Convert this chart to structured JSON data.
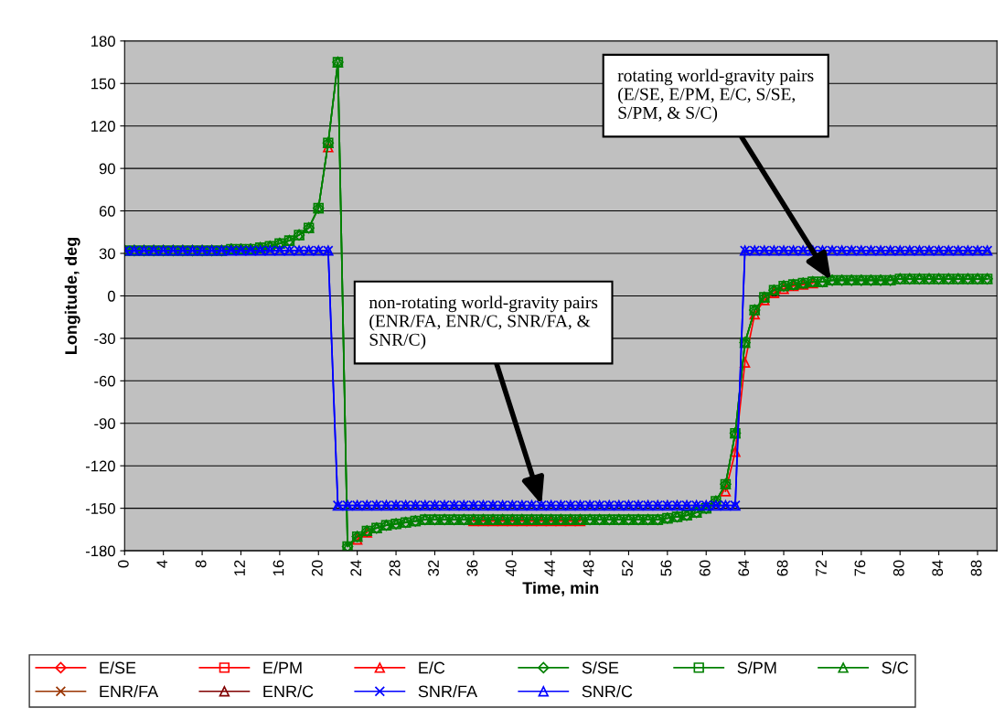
{
  "chart_data": {
    "type": "line",
    "xlabel": "Time, min",
    "ylabel": "Longitude, deg",
    "x": [
      0,
      1,
      2,
      3,
      4,
      5,
      6,
      7,
      8,
      9,
      10,
      11,
      12,
      13,
      14,
      15,
      16,
      17,
      18,
      19,
      20,
      21,
      22,
      23,
      24,
      25,
      26,
      27,
      28,
      29,
      30,
      31,
      32,
      33,
      34,
      35,
      36,
      37,
      38,
      39,
      40,
      41,
      42,
      43,
      44,
      45,
      46,
      47,
      48,
      49,
      50,
      51,
      52,
      53,
      54,
      55,
      56,
      57,
      58,
      59,
      60,
      61,
      62,
      63,
      64,
      65,
      66,
      67,
      68,
      69,
      70,
      71,
      72,
      73,
      74,
      75,
      76,
      77,
      78,
      79,
      80,
      81,
      82,
      83,
      84,
      85,
      86,
      87,
      88,
      89
    ],
    "xlim": [
      0,
      90
    ],
    "xticks": [
      0,
      4,
      8,
      12,
      16,
      20,
      24,
      28,
      32,
      36,
      40,
      44,
      48,
      52,
      56,
      60,
      64,
      68,
      72,
      76,
      80,
      84,
      88
    ],
    "ylim": [
      -180,
      180
    ],
    "yticks": [
      -180,
      -150,
      -120,
      -90,
      -60,
      -30,
      0,
      30,
      60,
      90,
      120,
      150,
      180
    ],
    "grid": "y",
    "legend": "bottom",
    "line_style": "solid",
    "series": [
      {
        "name": "E/SE",
        "color": "#ff0000",
        "marker": "diamond",
        "values": [
          null,
          null,
          null,
          null,
          null,
          null,
          null,
          null,
          null,
          null,
          null,
          null,
          null,
          null,
          null,
          null,
          null,
          null,
          null,
          null,
          null,
          null,
          null,
          null,
          null,
          null,
          null,
          null,
          null,
          null,
          null,
          null,
          null,
          null,
          null,
          null,
          null,
          null,
          null,
          null,
          null,
          null,
          null,
          null,
          null,
          null,
          null,
          null,
          null,
          null,
          null,
          null,
          null,
          null,
          null,
          null,
          null,
          null,
          null,
          null,
          null,
          null,
          null,
          null,
          null,
          null,
          null,
          null,
          null,
          null,
          null,
          null,
          null,
          null,
          null,
          null,
          null,
          null,
          null,
          null,
          null,
          null,
          null,
          null,
          null,
          null,
          null,
          null,
          null,
          null
        ]
      },
      {
        "name": "E/PM",
        "color": "#ff0000",
        "marker": "square",
        "values": [
          null,
          null,
          null,
          null,
          null,
          null,
          null,
          null,
          null,
          null,
          null,
          null,
          null,
          null,
          null,
          null,
          null,
          null,
          null,
          null,
          null,
          null,
          null,
          null,
          null,
          null,
          null,
          null,
          null,
          null,
          null,
          null,
          null,
          null,
          null,
          null,
          null,
          null,
          null,
          null,
          null,
          null,
          null,
          null,
          null,
          null,
          null,
          null,
          null,
          null,
          null,
          null,
          null,
          null,
          null,
          null,
          null,
          null,
          null,
          null,
          null,
          null,
          null,
          null,
          null,
          null,
          null,
          null,
          null,
          null,
          null,
          null,
          null,
          null,
          null,
          null,
          null,
          null,
          null,
          null,
          null,
          null,
          null,
          null,
          null,
          null,
          null,
          null,
          null,
          null
        ]
      },
      {
        "name": "E/C",
        "color": "#ff0000",
        "marker": "triangle",
        "values": [
          null,
          null,
          null,
          null,
          null,
          null,
          null,
          null,
          null,
          null,
          null,
          null,
          null,
          null,
          null,
          null,
          null,
          null,
          null,
          null,
          null,
          105,
          null,
          null,
          -172,
          -167,
          null,
          null,
          null,
          null,
          null,
          null,
          null,
          null,
          null,
          null,
          -159,
          -159,
          -159,
          -159,
          -159,
          -159,
          -159,
          -159,
          -159,
          -159,
          -159,
          -159,
          null,
          null,
          null,
          null,
          null,
          null,
          null,
          null,
          null,
          null,
          null,
          null,
          null,
          null,
          -138,
          -110,
          -47,
          -13,
          -3,
          2,
          5,
          7,
          8,
          9,
          null,
          null,
          null,
          null,
          null,
          null,
          null,
          null,
          null,
          null,
          null,
          null,
          null,
          null,
          null,
          null,
          null,
          null
        ]
      },
      {
        "name": "S/SE",
        "color": "#008000",
        "marker": "diamond",
        "values": [
          32,
          32,
          32,
          32,
          32,
          32,
          32,
          32,
          32,
          32,
          32,
          33,
          33,
          33,
          34,
          35,
          37,
          39,
          43,
          48,
          62,
          108,
          165,
          -177,
          -170,
          -166,
          -164,
          -162,
          -161,
          -160,
          -159,
          -158,
          -158,
          -158,
          -158,
          -158,
          -158,
          -158,
          -158,
          -158,
          -158,
          -158,
          -158,
          -158,
          -158,
          -158,
          -158,
          -158,
          -158,
          -158,
          -158,
          -158,
          -158,
          -158,
          -158,
          -158,
          -157,
          -156,
          -155,
          -153,
          -150,
          -145,
          -133,
          -97,
          -33,
          -10,
          -1,
          4,
          7,
          8,
          9,
          10,
          10,
          11,
          11,
          11,
          11,
          11,
          11,
          11,
          12,
          12,
          12,
          12,
          12,
          12,
          12,
          12,
          12,
          12
        ]
      },
      {
        "name": "S/PM",
        "color": "#008000",
        "marker": "square",
        "values": [
          32,
          32,
          32,
          32,
          32,
          32,
          32,
          32,
          32,
          32,
          32,
          33,
          33,
          33,
          34,
          35,
          37,
          39,
          43,
          48,
          62,
          108,
          165,
          -177,
          -170,
          -166,
          -164,
          -162,
          -161,
          -160,
          -159,
          -158,
          -158,
          -158,
          -158,
          -158,
          -158,
          -158,
          -158,
          -158,
          -158,
          -158,
          -158,
          -158,
          -158,
          -158,
          -158,
          -158,
          -158,
          -158,
          -158,
          -158,
          -158,
          -158,
          -158,
          -158,
          -157,
          -156,
          -155,
          -153,
          -150,
          -145,
          -133,
          -97,
          -33,
          -10,
          -1,
          4,
          7,
          8,
          9,
          10,
          10,
          11,
          11,
          11,
          11,
          11,
          11,
          11,
          12,
          12,
          12,
          12,
          12,
          12,
          12,
          12,
          12,
          12
        ]
      },
      {
        "name": "S/C",
        "color": "#008000",
        "marker": "triangle",
        "values": [
          32,
          32,
          32,
          32,
          32,
          32,
          32,
          32,
          32,
          32,
          32,
          33,
          33,
          33,
          34,
          35,
          37,
          39,
          43,
          48,
          62,
          108,
          165,
          -177,
          -170,
          -166,
          -164,
          -162,
          -161,
          -160,
          -159,
          -158,
          -158,
          -158,
          -158,
          -158,
          -158,
          -158,
          -158,
          -158,
          -158,
          -158,
          -158,
          -158,
          -158,
          -158,
          -158,
          -158,
          -158,
          -158,
          -158,
          -158,
          -158,
          -158,
          -158,
          -158,
          -157,
          -156,
          -155,
          -153,
          -150,
          -145,
          -133,
          -97,
          -33,
          -10,
          -1,
          4,
          7,
          8,
          9,
          10,
          10,
          11,
          11,
          11,
          11,
          11,
          11,
          11,
          12,
          12,
          12,
          12,
          12,
          12,
          12,
          12,
          12,
          12
        ]
      },
      {
        "name": "ENR/FA",
        "color": "#993300",
        "marker": "cross",
        "values": [
          null,
          null,
          null,
          null,
          null,
          null,
          null,
          null,
          null,
          null,
          null,
          null,
          null,
          null,
          null,
          null,
          null,
          null,
          null,
          null,
          null,
          null,
          null,
          null,
          null,
          null,
          null,
          null,
          null,
          null,
          null,
          null,
          null,
          null,
          null,
          null,
          null,
          null,
          null,
          null,
          null,
          null,
          null,
          null,
          null,
          null,
          null,
          null,
          null,
          null,
          null,
          null,
          null,
          null,
          null,
          null,
          null,
          null,
          null,
          null,
          null,
          null,
          null,
          null,
          null,
          null,
          null,
          null,
          null,
          null,
          null,
          null,
          null,
          null,
          null,
          null,
          null,
          null,
          null,
          null,
          null,
          null,
          null,
          null,
          null,
          null,
          null,
          null,
          null,
          null
        ]
      },
      {
        "name": "ENR/C",
        "color": "#800000",
        "marker": "triangle",
        "values": [
          null,
          null,
          null,
          null,
          null,
          null,
          null,
          null,
          null,
          null,
          null,
          null,
          null,
          null,
          null,
          null,
          null,
          null,
          null,
          null,
          null,
          null,
          null,
          null,
          null,
          null,
          null,
          null,
          null,
          null,
          null,
          null,
          null,
          null,
          null,
          null,
          null,
          null,
          null,
          null,
          null,
          null,
          null,
          null,
          null,
          null,
          null,
          null,
          null,
          null,
          null,
          null,
          null,
          null,
          null,
          null,
          null,
          null,
          null,
          null,
          null,
          null,
          null,
          null,
          null,
          null,
          null,
          null,
          null,
          null,
          null,
          null,
          null,
          null,
          null,
          null,
          null,
          null,
          null,
          null,
          null,
          null,
          null,
          null,
          null,
          null,
          null,
          null,
          null,
          null
        ]
      },
      {
        "name": "SNR/FA",
        "color": "#0000ff",
        "marker": "cross",
        "values": [
          32,
          32,
          32,
          32,
          32,
          32,
          32,
          32,
          32,
          32,
          32,
          32,
          32,
          32,
          32,
          32,
          32,
          32,
          32,
          32,
          32,
          32,
          -148,
          -148,
          -148,
          -148,
          -148,
          -148,
          -148,
          -148,
          -148,
          -148,
          -148,
          -148,
          -148,
          -148,
          -148,
          -148,
          -148,
          -148,
          -148,
          -148,
          -148,
          -148,
          -148,
          -148,
          -148,
          -148,
          -148,
          -148,
          -148,
          -148,
          -148,
          -148,
          -148,
          -148,
          -148,
          -148,
          -148,
          -148,
          -148,
          -148,
          -148,
          -148,
          32,
          32,
          32,
          32,
          32,
          32,
          32,
          32,
          32,
          32,
          32,
          32,
          32,
          32,
          32,
          32,
          32,
          32,
          32,
          32,
          32,
          32,
          32,
          32,
          32,
          32
        ]
      },
      {
        "name": "SNR/C",
        "color": "#0000ff",
        "marker": "triangle",
        "values": [
          32,
          32,
          32,
          32,
          32,
          32,
          32,
          32,
          32,
          32,
          32,
          32,
          32,
          32,
          32,
          32,
          32,
          32,
          32,
          32,
          32,
          32,
          -148,
          -148,
          -148,
          -148,
          -148,
          -148,
          -148,
          -148,
          -148,
          -148,
          -148,
          -148,
          -148,
          -148,
          -148,
          -148,
          -148,
          -148,
          -148,
          -148,
          -148,
          -148,
          -148,
          -148,
          -148,
          -148,
          -148,
          -148,
          -148,
          -148,
          -148,
          -148,
          -148,
          -148,
          -148,
          -148,
          -148,
          -148,
          -148,
          -148,
          -148,
          -148,
          32,
          32,
          32,
          32,
          32,
          32,
          32,
          32,
          32,
          32,
          32,
          32,
          32,
          32,
          32,
          32,
          32,
          32,
          32,
          32,
          32,
          32,
          32,
          32,
          32,
          32
        ]
      }
    ],
    "annotations": [
      "non-rotating world-gravity pairs\n(ENR/FA, ENR/C, SNR/FA, &\nSNR/C)",
      "rotating world-gravity pairs\n(E/SE, E/PM, E/C, S/SE,\nS/PM, & S/C)"
    ]
  }
}
